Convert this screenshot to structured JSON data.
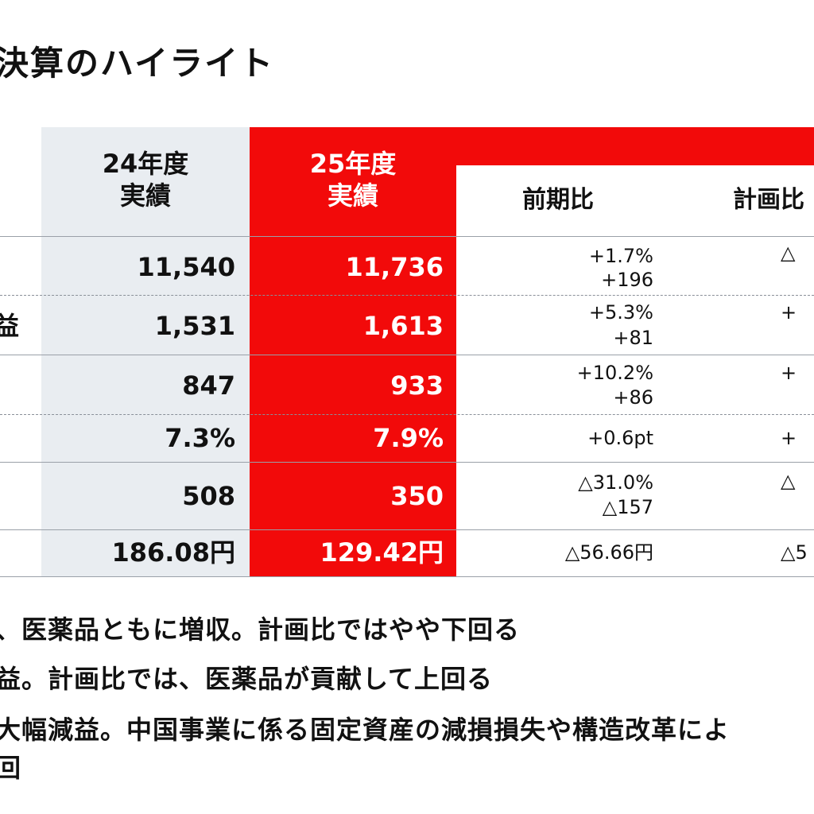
{
  "title": "決算のハイライト",
  "headers": {
    "fy24": "24年度\n実績",
    "fy25": "25年度\n実績",
    "yoy": "前期比",
    "vs_plan": "計画比"
  },
  "rows": [
    {
      "left": "",
      "fy24": "11,540",
      "fy25": "11,736",
      "yoy_1": "+1.7%",
      "yoy_2": "+196",
      "plan": "△"
    },
    {
      "left": "益",
      "fy24": "1,531",
      "fy25": "1,613",
      "yoy_1": "+5.3%",
      "yoy_2": "+81",
      "plan": "+"
    },
    {
      "left": "",
      "fy24": "847",
      "fy25": "933",
      "yoy_1": "+10.2%",
      "yoy_2": "+86",
      "plan": "+"
    },
    {
      "left": "",
      "fy24": "7.3%",
      "fy25": "7.9%",
      "yoy_1": "+0.6pt",
      "yoy_2": "",
      "plan": "+"
    },
    {
      "left": "",
      "fy24": "508",
      "fy25": "350",
      "yoy_1": "△31.0%",
      "yoy_2": "△157",
      "plan": "△"
    },
    {
      "left": "",
      "fy24": "186.08円",
      "fy25": "129.42円",
      "yoy_1": "△56.66円",
      "yoy_2": "",
      "plan": "△5"
    }
  ],
  "bullets": [
    "、医薬品ともに増収。計画比ではやや下回る",
    "益。計画比では、医薬品が貢献して上回る",
    "大幅減益。中国事業に係る固定資産の減損損失や構造改革によ",
    "回"
  ],
  "colors": {
    "accent": "#f20a0a",
    "fy24_bg": "#e9edf1"
  }
}
